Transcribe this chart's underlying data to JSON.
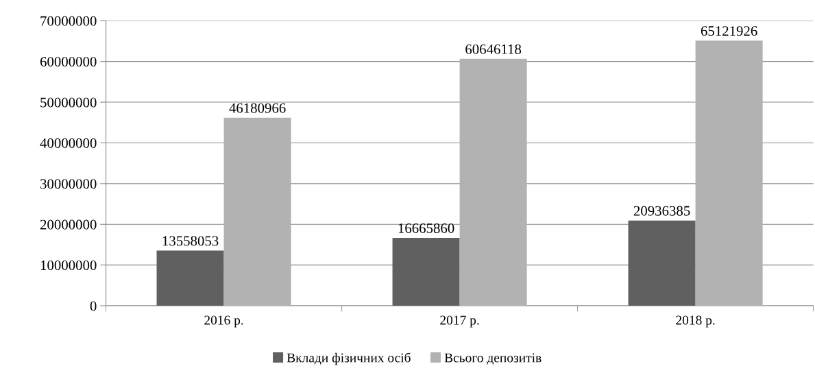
{
  "chart_data": {
    "type": "bar",
    "categories": [
      "2016 р.",
      "2017 р.",
      "2018 р."
    ],
    "series": [
      {
        "name": "Вклади фізичних осіб",
        "color": "#606060",
        "values": [
          13558053,
          16665860,
          20936385
        ]
      },
      {
        "name": "Всього депозитів",
        "color": "#b2b2b2",
        "values": [
          46180966,
          60646118,
          65121926
        ]
      }
    ],
    "ylim": [
      0,
      70000000
    ],
    "yticks": [
      0,
      10000000,
      20000000,
      30000000,
      40000000,
      50000000,
      60000000,
      70000000
    ],
    "grid": "y",
    "legend": "bottom",
    "data_labels": true
  }
}
